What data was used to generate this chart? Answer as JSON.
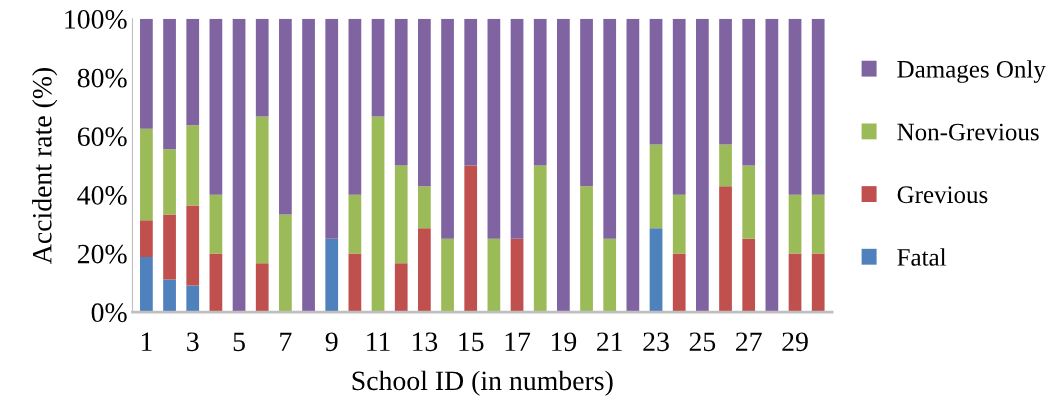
{
  "chart_data": {
    "type": "bar",
    "stacked": true,
    "xlabel": "School ID (in numbers)",
    "ylabel": "Accident rate (%)",
    "categories": [
      "1",
      null,
      "3",
      null,
      "5",
      null,
      "7",
      null,
      "9",
      null,
      "11",
      null,
      "13",
      null,
      "15",
      null,
      "17",
      null,
      "19",
      null,
      "21",
      null,
      "23",
      null,
      "25",
      null,
      "27",
      null,
      "29",
      null
    ],
    "series": [
      {
        "name": "Fatal",
        "color": "#4f81bd",
        "values": [
          18.8,
          11.1,
          9.1,
          0,
          0,
          0,
          0,
          0,
          25,
          0,
          0,
          0,
          0,
          0,
          0,
          0,
          0,
          0,
          0,
          0,
          0,
          0,
          28.6,
          0,
          0,
          0,
          0,
          0,
          0,
          0
        ]
      },
      {
        "name": "Grevious",
        "color": "#c0504d",
        "values": [
          12.5,
          22.2,
          27.3,
          20,
          0,
          16.7,
          0,
          0,
          0,
          20,
          0,
          16.7,
          28.6,
          0,
          50,
          0,
          25,
          0,
          0,
          0,
          0,
          0,
          0,
          20,
          0,
          42.9,
          25,
          0,
          20,
          20
        ]
      },
      {
        "name": "Non-Grevious",
        "color": "#9bbb59",
        "values": [
          31.2,
          22.2,
          27.3,
          20,
          0,
          50,
          33.3,
          0,
          0,
          20,
          66.7,
          33.3,
          14.3,
          25,
          0,
          25,
          0,
          50,
          0,
          42.9,
          25,
          0,
          28.6,
          20,
          0,
          14.3,
          25,
          0,
          20,
          20
        ]
      },
      {
        "name": "Damages Only",
        "color": "#8064a2",
        "values": [
          37.5,
          44.5,
          36.3,
          60,
          100,
          33.3,
          66.7,
          100,
          75,
          60,
          33.3,
          50,
          57.1,
          75,
          50,
          75,
          75,
          50,
          100,
          57.1,
          75,
          100,
          42.8,
          60,
          100,
          42.8,
          50,
          100,
          60,
          60
        ]
      }
    ],
    "ylim": [
      0,
      100
    ],
    "yticks": [
      {
        "value": 0,
        "label": "0%"
      },
      {
        "value": 20,
        "label": "20%"
      },
      {
        "value": 40,
        "label": "40%"
      },
      {
        "value": 60,
        "label": "60%"
      },
      {
        "value": 80,
        "label": "80%"
      },
      {
        "value": 100,
        "label": "100%"
      }
    ],
    "legend": "right",
    "grid": false
  }
}
